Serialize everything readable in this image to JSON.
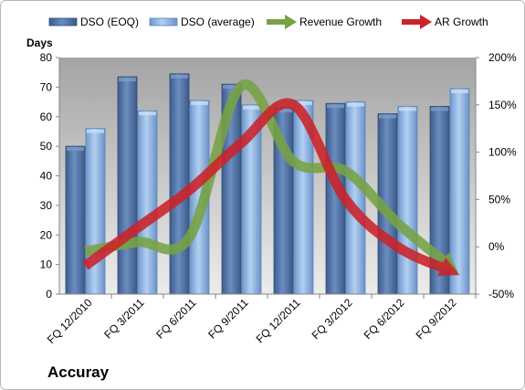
{
  "company": "Accuray",
  "chart_data": {
    "type": "bar",
    "categories": [
      "FQ 12/2010",
      "FQ 3/2011",
      "FQ 6/2011",
      "FQ 9/2011",
      "FQ 12/2011",
      "FQ 3/2012",
      "FQ 6/2012",
      "FQ 9/2012"
    ],
    "series": [
      {
        "name": "DSO (EOQ)",
        "type": "bar",
        "axis": "left",
        "values": [
          50,
          73.5,
          74.5,
          71,
          63,
          64.5,
          61,
          63.5
        ],
        "color": "#5072a6"
      },
      {
        "name": "DSO (average)",
        "type": "bar",
        "axis": "left",
        "values": [
          56,
          62,
          65.5,
          64,
          65.5,
          65,
          63.5,
          69.5
        ],
        "color": "#8fb6e4"
      },
      {
        "name": "Revenue Growth",
        "type": "line",
        "axis": "right",
        "unit": "%",
        "values": [
          -5,
          5,
          10,
          170,
          90,
          80,
          25,
          -20
        ],
        "color": "#77a344"
      },
      {
        "name": "AR Growth",
        "type": "line",
        "axis": "right",
        "unit": "%",
        "values": [
          -20,
          20,
          60,
          110,
          150,
          50,
          0,
          -25
        ],
        "color": "#cc2229"
      }
    ],
    "ylabel": "Days",
    "ylim": [
      0,
      80
    ],
    "yticks": [
      "0",
      "10",
      "20",
      "30",
      "40",
      "50",
      "60",
      "70",
      "80"
    ],
    "y2lim": [
      -50,
      200
    ],
    "y2ticks": [
      "-50%",
      "0%",
      "50%",
      "100%",
      "150%",
      "200%"
    ],
    "legend_position": "top",
    "grid": false
  }
}
